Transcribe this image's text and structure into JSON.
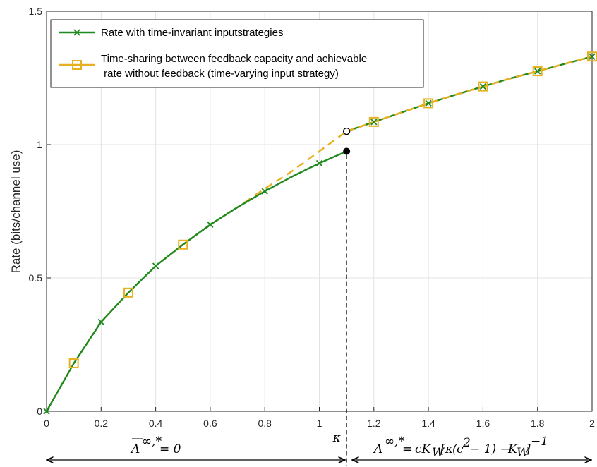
{
  "chart_data": {
    "type": "line",
    "xlabel": "",
    "ylabel": "Rate (bits/channel use)",
    "xlim": [
      0,
      2
    ],
    "ylim": [
      0,
      1.5
    ],
    "x_ticks": [
      "0",
      "0.2",
      "0.4",
      "0.6",
      "0.8",
      "1",
      "1.2",
      "1.4",
      "1.6",
      "1.8",
      "2"
    ],
    "y_ticks": [
      "0",
      "0.5",
      "1",
      "1.5"
    ],
    "grid": true,
    "legend_position": "top-left",
    "colors": {
      "green": "#1e8a1e",
      "orange": "#e6b020"
    },
    "kappa": {
      "x": 1.1,
      "label": "κ"
    },
    "series": [
      {
        "name": "Rate with time-invariant inputstrategies",
        "color": "#1e8a1e",
        "marker": "x",
        "x": [
          0,
          0.1,
          0.2,
          0.3,
          0.4,
          0.5,
          0.6,
          0.7,
          0.8,
          0.9,
          1.0,
          1.1,
          1.2,
          1.3,
          1.4,
          1.5,
          1.6,
          1.7,
          1.8,
          1.9,
          2.0
        ],
        "y": [
          0,
          0.18,
          0.335,
          0.445,
          0.545,
          0.625,
          0.7,
          0.765,
          0.825,
          0.88,
          0.93,
          0.975,
          1.085,
          1.12,
          1.155,
          1.187,
          1.218,
          1.248,
          1.275,
          1.303,
          1.33
        ],
        "marker_x": [
          0,
          0.2,
          0.4,
          0.6,
          0.8,
          1.0,
          1.2,
          1.4,
          1.6,
          1.8,
          2.0
        ]
      },
      {
        "name": "Time-sharing between feedback capacity and achievable rate without feedback (time-varying input strategy)",
        "color": "#e6b020",
        "marker": "square",
        "x": [
          0,
          0.1,
          0.2,
          0.3,
          0.4,
          0.5,
          0.6,
          0.7,
          0.8,
          0.9,
          1.0,
          1.1,
          1.2,
          1.3,
          1.4,
          1.5,
          1.6,
          1.7,
          1.8,
          1.9,
          2.0
        ],
        "y": [
          0,
          0.18,
          0.335,
          0.445,
          0.545,
          0.625,
          0.7,
          0.765,
          0.835,
          0.9,
          0.975,
          1.05,
          1.085,
          1.12,
          1.155,
          1.187,
          1.218,
          1.248,
          1.275,
          1.303,
          1.33
        ],
        "marker_x": [
          0.1,
          0.3,
          0.5,
          1.2,
          1.4,
          1.6,
          1.8,
          2.0
        ]
      }
    ],
    "legend": [
      "Rate with time-invariant inputstrategies",
      "Time-sharing between feedback capacity and achievable",
      " rate without feedback (time-varying input strategy)"
    ],
    "annotations": {
      "left_region": "Λ̅^{∞,*} = 0",
      "right_region": "Λ^{∞,*} = cK_W[κ(c^2 − 1) − K_W]^{−1}"
    }
  }
}
